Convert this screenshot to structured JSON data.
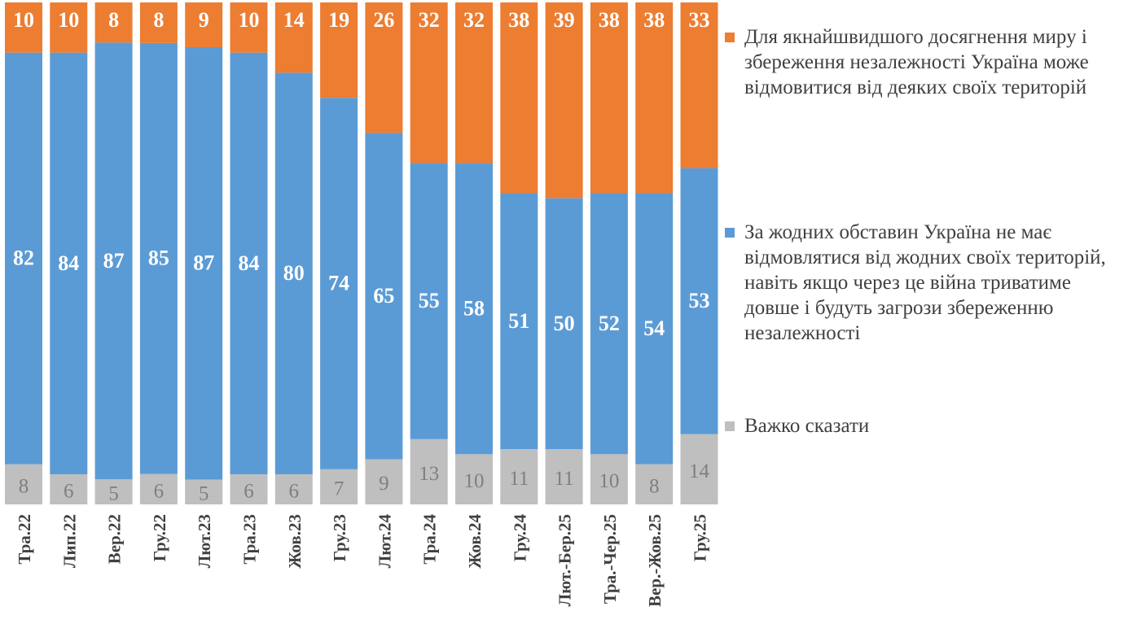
{
  "chart_data": {
    "type": "bar",
    "stacked": true,
    "categories": [
      "Тра.22",
      "Лип.22",
      "Вер.22",
      "Гру.22",
      "Лют.23",
      "Тра.23",
      "Жов.23",
      "Гру.23",
      "Лют.24",
      "Тра.24",
      "Жов.24",
      "Гру.24",
      "Лют.-Бер.25",
      "Тра.-Чер.25",
      "Вер.-Жов.25",
      "Гру.25"
    ],
    "series": [
      {
        "name": "Важко сказати",
        "color": "#BFBFBF",
        "values": [
          8,
          6,
          5,
          6,
          5,
          6,
          6,
          7,
          9,
          13,
          10,
          11,
          11,
          10,
          8,
          14
        ]
      },
      {
        "name": "За жодних обставин Україна не має відмовлятися від жодних своїх територій, навіть якщо через це війна триватиме довше і будуть загрози збереженню незалежності",
        "color": "#5B9BD5",
        "values": [
          82,
          84,
          87,
          85,
          87,
          84,
          80,
          74,
          65,
          55,
          58,
          51,
          50,
          52,
          54,
          53
        ]
      },
      {
        "name": "Для якнайшвидшого досягнення миру і збереження незалежності Україна може відмовитися від деяких своїх територій",
        "color": "#ED7D31",
        "values": [
          10,
          10,
          8,
          8,
          9,
          10,
          14,
          19,
          26,
          32,
          32,
          38,
          39,
          38,
          38,
          33
        ]
      }
    ],
    "legend": "right",
    "grid": false,
    "data_labels": true
  }
}
